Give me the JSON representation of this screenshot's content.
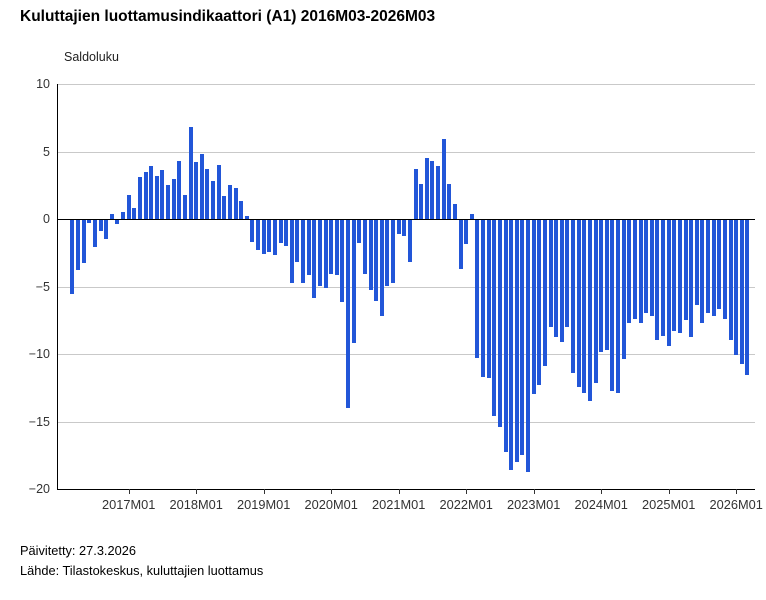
{
  "header": {
    "title": "Kuluttajien luottamusindikaattori (A1) 2016M03-2026M03"
  },
  "chart_data": {
    "type": "bar",
    "title": "Kuluttajien luottamusindikaattori (A1) 2016M03-2026M03",
    "xlabel": "",
    "ylabel": "Saldoluku",
    "ylim": [
      -20,
      10
    ],
    "y_tick_step": 5,
    "y_tick_labels": [
      "10",
      "5",
      "0",
      "−5",
      "−10",
      "−15",
      "−20"
    ],
    "grid": true,
    "legend_position": "none",
    "bar_color": "#2256d8",
    "x_tick_labels": [
      "2017M01",
      "2018M01",
      "2019M01",
      "2020M01",
      "2021M01",
      "2022M01",
      "2023M01",
      "2024M01",
      "2025M01",
      "2026M01"
    ],
    "x_tick_month_index": [
      10,
      22,
      34,
      46,
      58,
      70,
      82,
      94,
      106,
      118
    ],
    "categories": [
      "2016M03",
      "2016M04",
      "2016M05",
      "2016M06",
      "2016M07",
      "2016M08",
      "2016M09",
      "2016M10",
      "2016M11",
      "2016M12",
      "2017M01",
      "2017M02",
      "2017M03",
      "2017M04",
      "2017M05",
      "2017M06",
      "2017M07",
      "2017M08",
      "2017M09",
      "2017M10",
      "2017M11",
      "2017M12",
      "2018M01",
      "2018M02",
      "2018M03",
      "2018M04",
      "2018M05",
      "2018M06",
      "2018M07",
      "2018M08",
      "2018M09",
      "2018M10",
      "2018M11",
      "2018M12",
      "2019M01",
      "2019M02",
      "2019M03",
      "2019M04",
      "2019M05",
      "2019M06",
      "2019M07",
      "2019M08",
      "2019M09",
      "2019M10",
      "2019M11",
      "2019M12",
      "2020M01",
      "2020M02",
      "2020M03",
      "2020M04",
      "2020M05",
      "2020M06",
      "2020M07",
      "2020M08",
      "2020M09",
      "2020M10",
      "2020M11",
      "2020M12",
      "2021M01",
      "2021M02",
      "2021M03",
      "2021M04",
      "2021M05",
      "2021M06",
      "2021M07",
      "2021M08",
      "2021M09",
      "2021M10",
      "2021M11",
      "2021M12",
      "2022M01",
      "2022M02",
      "2022M03",
      "2022M04",
      "2022M05",
      "2022M06",
      "2022M07",
      "2022M08",
      "2022M09",
      "2022M10",
      "2022M11",
      "2022M12",
      "2023M01",
      "2023M02",
      "2023M03",
      "2023M04",
      "2023M05",
      "2023M06",
      "2023M07",
      "2023M08",
      "2023M09",
      "2023M10",
      "2023M11",
      "2023M12",
      "2024M01",
      "2024M02",
      "2024M03",
      "2024M04",
      "2024M05",
      "2024M06",
      "2024M07",
      "2024M08",
      "2024M09",
      "2024M10",
      "2024M11",
      "2024M12",
      "2025M01",
      "2025M02",
      "2025M03",
      "2025M04",
      "2025M05",
      "2025M06",
      "2025M07",
      "2025M08",
      "2025M09",
      "2025M10",
      "2025M11",
      "2025M12",
      "2026M01",
      "2026M02",
      "2026M03"
    ],
    "values": [
      -5.5,
      -3.7,
      -3.2,
      -0.2,
      -2.0,
      -0.8,
      -1.4,
      0.4,
      -0.3,
      0.5,
      1.8,
      0.8,
      3.1,
      3.5,
      3.9,
      3.2,
      3.6,
      2.5,
      3.0,
      4.3,
      1.8,
      6.8,
      4.2,
      4.8,
      3.7,
      2.8,
      4.0,
      1.7,
      2.5,
      2.3,
      1.3,
      0.2,
      -1.6,
      -2.2,
      -2.5,
      -2.4,
      -2.6,
      -1.7,
      -1.9,
      -4.7,
      -3.1,
      -4.7,
      -4.1,
      -5.8,
      -4.9,
      -5.0,
      -4.0,
      -4.1,
      -6.1,
      -13.9,
      -9.1,
      -1.7,
      -4.0,
      -5.2,
      -6.0,
      -7.1,
      -4.9,
      -4.7,
      -1.0,
      -1.2,
      -3.1,
      3.7,
      2.6,
      4.5,
      4.3,
      3.9,
      5.9,
      2.6,
      1.1,
      -3.6,
      -1.8,
      0.4,
      -10.2,
      -11.6,
      -11.7,
      -14.5,
      -15.3,
      -17.2,
      -18.5,
      -17.9,
      -17.4,
      -18.7,
      -12.9,
      -12.2,
      -10.8,
      -7.9,
      -8.7,
      -9.0,
      -7.9,
      -11.3,
      -12.4,
      -12.8,
      -13.4,
      -12.1,
      -9.8,
      -9.6,
      -12.7,
      -12.8,
      -10.3,
      -7.6,
      -7.3,
      -7.6,
      -6.9,
      -7.1,
      -8.9,
      -8.6,
      -9.3,
      -8.2,
      -8.4,
      -7.4,
      -8.7,
      -6.3,
      -7.6,
      -6.9,
      -7.1,
      -6.6,
      -7.3,
      -8.9,
      -10.0,
      -10.7,
      -11.5
    ]
  },
  "footer": {
    "updated": "Päivitetty: 27.3.2026",
    "source": "Lähde: Tilastokeskus, kuluttajien luottamus"
  }
}
